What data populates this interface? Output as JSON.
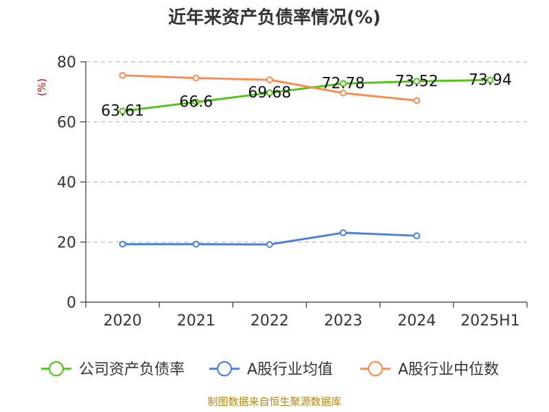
{
  "chart_data": {
    "type": "line",
    "title": "近年来资产负债率情况(%)",
    "ylabel": "(%)",
    "xlabel": "",
    "categories": [
      "2020",
      "2021",
      "2022",
      "2023",
      "2024",
      "2025H1"
    ],
    "ylim": [
      0,
      80
    ],
    "yticks": [
      0,
      20,
      40,
      60,
      80
    ],
    "grid": true,
    "legend_position": "bottom",
    "series": [
      {
        "name": "公司资产负债率",
        "color": "#52c41a",
        "values": [
          63.61,
          66.6,
          69.68,
          72.78,
          73.52,
          73.94
        ],
        "labels": [
          "63.61",
          "66.6",
          "69.68",
          "72.78",
          "73.52",
          "73.94"
        ]
      },
      {
        "name": "A股行业均值",
        "color": "#4a7fdb",
        "values": [
          19.3,
          19.3,
          19.2,
          23.1,
          22.1,
          null
        ]
      },
      {
        "name": "A股行业中位数",
        "color": "#fa8c4f",
        "values": [
          75.5,
          74.6,
          74.0,
          69.6,
          67.1,
          null
        ]
      }
    ],
    "source": "制图数据来自恒生聚源数据库"
  }
}
